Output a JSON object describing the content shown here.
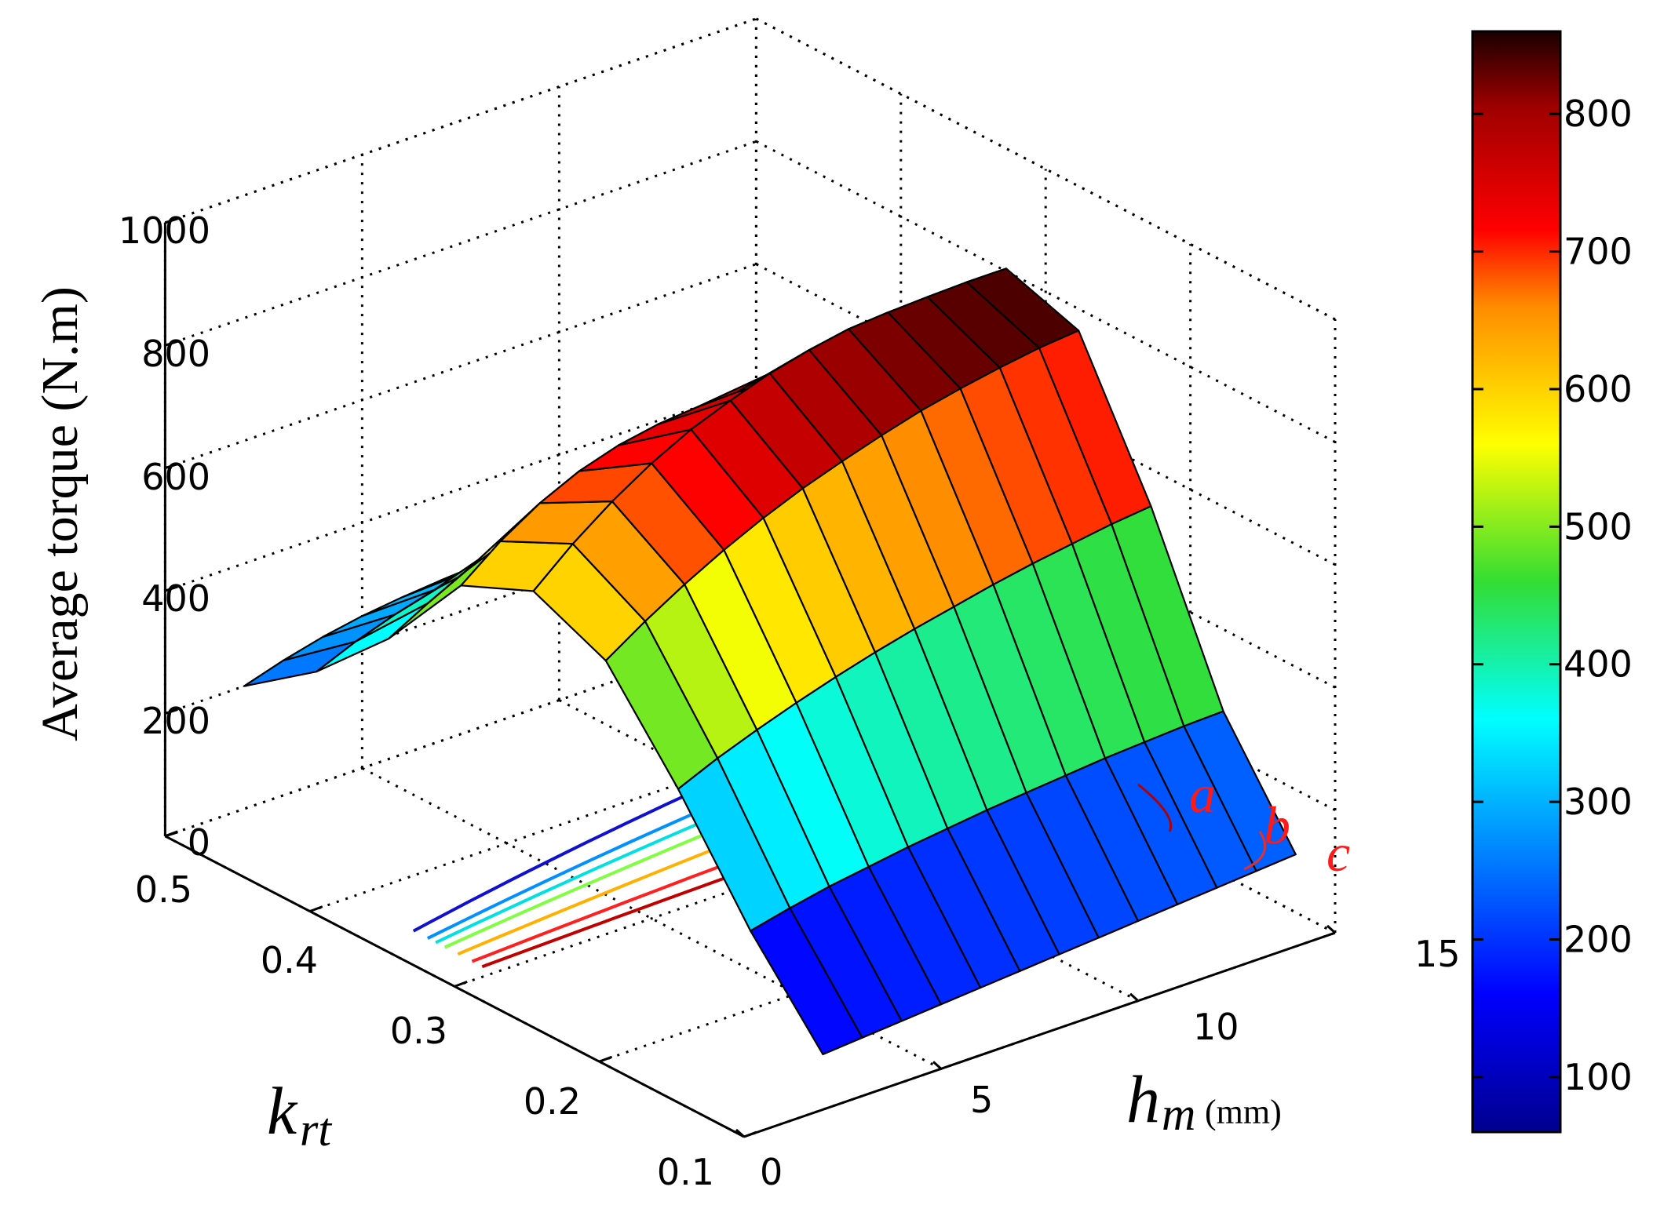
{
  "chart_data": {
    "type": "surface",
    "zlabel": "Average torque (N.m)",
    "xlabel_symbol": "h",
    "xlabel_subscript": "m",
    "xlabel_unit": "(mm)",
    "ylabel_symbol": "k",
    "ylabel_subscript": "rt",
    "x_ticks": [
      "0",
      "5",
      "10",
      "15"
    ],
    "y_ticks": [
      "0.5",
      "0.4",
      "0.3",
      "0.2",
      "0.1"
    ],
    "z_ticks": [
      "1000",
      "800",
      "600",
      "400",
      "200",
      "0"
    ],
    "colorbar_ticks": [
      "800",
      "700",
      "600",
      "500",
      "400",
      "300",
      "200",
      "100"
    ],
    "xlim": [
      0,
      15
    ],
    "ylim": [
      0.1,
      0.5
    ],
    "zlim": [
      0,
      1000
    ],
    "clim": [
      60,
      860
    ],
    "colormap": "jet",
    "grid": true,
    "colorbar": "right",
    "hm_grid": [
      2,
      3,
      4,
      5,
      6,
      7,
      8,
      9,
      10,
      11,
      12,
      13,
      14
    ],
    "krt_grid": [
      0.1,
      0.15,
      0.2,
      0.25,
      0.3,
      0.35,
      0.4,
      0.45,
      0.5
    ],
    "torque": [
      [
        90,
        95,
        100,
        105,
        110,
        115,
        120,
        125,
        130,
        135,
        140,
        145,
        150
      ],
      [
        230,
        245,
        258,
        268,
        278,
        286,
        294,
        300,
        306,
        312,
        316,
        320,
        322
      ],
      [
        400,
        428,
        452,
        474,
        494,
        512,
        528,
        542,
        556,
        568,
        578,
        588,
        595
      ],
      [
        548,
        590,
        628,
        662,
        692,
        718,
        740,
        760,
        778,
        792,
        804,
        814,
        820
      ],
      [
        600,
        655,
        702,
        742,
        775,
        800,
        822,
        838,
        850,
        855,
        858,
        860,
        860
      ],
      [
        548,
        598,
        638,
        668,
        688,
        700,
        706,
        708,
        706,
        702,
        696,
        690,
        682
      ],
      [
        400,
        436,
        468,
        494,
        512,
        524,
        530,
        534,
        534,
        532,
        528,
        522,
        515
      ],
      [
        285,
        312,
        334,
        352,
        364,
        372,
        378,
        380,
        380,
        378,
        375,
        370,
        365
      ],
      [
        200,
        220,
        236,
        248,
        256,
        262,
        266,
        268,
        268,
        267,
        265,
        262,
        258
      ]
    ],
    "contour_labels": [
      "a",
      "b",
      "c"
    ]
  }
}
